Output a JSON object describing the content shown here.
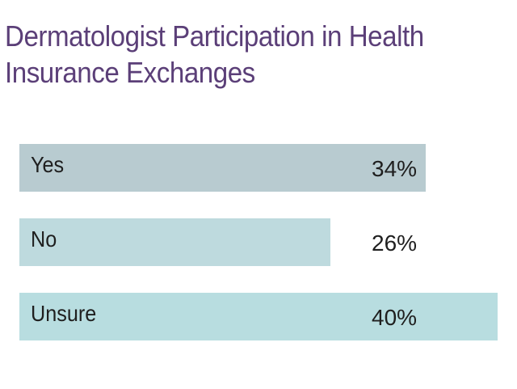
{
  "chart_data": {
    "type": "bar",
    "orientation": "horizontal",
    "title": "Dermatologist Participation in Health Insurance Exchanges",
    "categories": [
      "Yes",
      "No",
      "Unsure"
    ],
    "values": [
      34,
      26,
      40
    ],
    "value_labels": [
      "34%",
      "26%",
      "40%"
    ],
    "unit": "%",
    "xlim": [
      0,
      40
    ],
    "grid": false,
    "legend": "none",
    "bar_colors": [
      "#b8cbd0",
      "#bedade",
      "#b8dde0"
    ],
    "title_color": "#5b3f78",
    "text_color": "#1f1f1f"
  }
}
